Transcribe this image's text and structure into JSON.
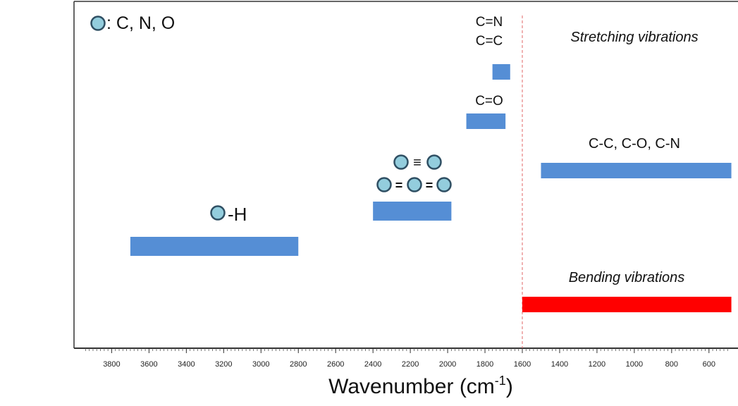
{
  "chart_data": {
    "type": "range-bar",
    "title": "",
    "xlabel": "Wavenumber",
    "xlabel_unit_base": "(cm",
    "xlabel_unit_exp": "-1",
    "xlabel_unit_close": ")",
    "xlim": [
      3950,
      480
    ],
    "x_reversed": true,
    "xticks": [
      3800,
      3600,
      3400,
      3200,
      3000,
      2800,
      2600,
      2400,
      2200,
      2000,
      1800,
      1600,
      1400,
      1200,
      1000,
      800,
      600
    ],
    "divider_wavenumber": 1600,
    "legend": {
      "symbol": "atom-circle-icon",
      "text": ": C, N, O"
    },
    "section_labels": {
      "stretching": "Stretching vibrations",
      "bending": "Bending vibrations"
    },
    "colors": {
      "stretching": "#558ED5",
      "bending": "#FF0000",
      "atom_fill": "#93CDDD",
      "atom_stroke": "#2F4F63",
      "divider": "#E06666",
      "axis": "#333333"
    },
    "series": [
      {
        "name": "O-H / N-H / C-H",
        "label_parts": [
          "",
          "-H"
        ],
        "group": "stretching",
        "x_start": 3700,
        "x_end": 2800
      },
      {
        "name": "triple and cumulated bonds",
        "label_parts": [
          "≡",
          "=",
          "="
        ],
        "group": "stretching",
        "x_start": 2400,
        "x_end": 1980
      },
      {
        "name": "C=O",
        "label": "C=O",
        "group": "stretching",
        "x_start": 1900,
        "x_end": 1690
      },
      {
        "name": "C=N / C=C",
        "label_lines": [
          "C=N",
          "C=C"
        ],
        "group": "stretching",
        "x_start": 1760,
        "x_end": 1665
      },
      {
        "name": "single bonds",
        "label": "C-C, C-O, C-N",
        "group": "stretching",
        "x_start": 1500,
        "x_end": 480
      },
      {
        "name": "bending",
        "group": "bending",
        "x_start": 1600,
        "x_end": 480
      }
    ]
  }
}
